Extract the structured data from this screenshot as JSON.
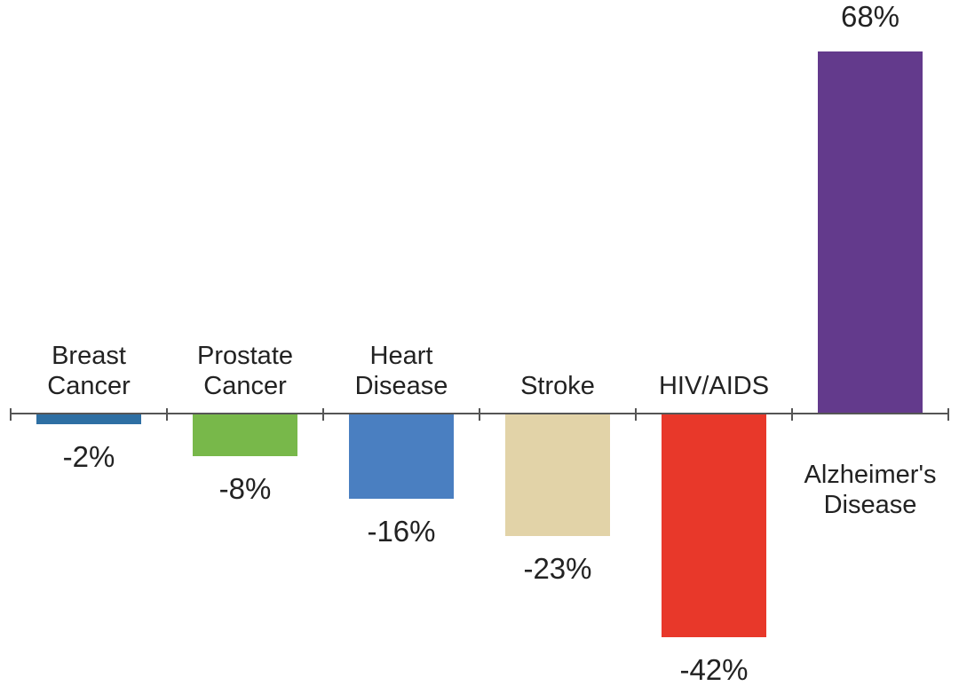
{
  "chart_data": {
    "type": "bar",
    "title": "",
    "xlabel": "",
    "ylabel": "",
    "categories": [
      [
        "Breast",
        "Cancer"
      ],
      [
        "Prostate",
        "Cancer"
      ],
      [
        "Heart",
        "Disease"
      ],
      [
        "Stroke"
      ],
      [
        "HIV/AIDS"
      ],
      [
        "Alzheimer's",
        "Disease"
      ]
    ],
    "values": [
      -2,
      -8,
      -16,
      -23,
      -42,
      68
    ],
    "value_labels": [
      "-2%",
      "-8%",
      "-16%",
      "-23%",
      "-42%",
      "68%"
    ],
    "colors": [
      "#2e6fa3",
      "#78b84a",
      "#4a7fc1",
      "#e2d3a8",
      "#e8382a",
      "#633a8c"
    ],
    "ylim": [
      -50,
      70
    ],
    "grid": false,
    "legend": "none"
  }
}
